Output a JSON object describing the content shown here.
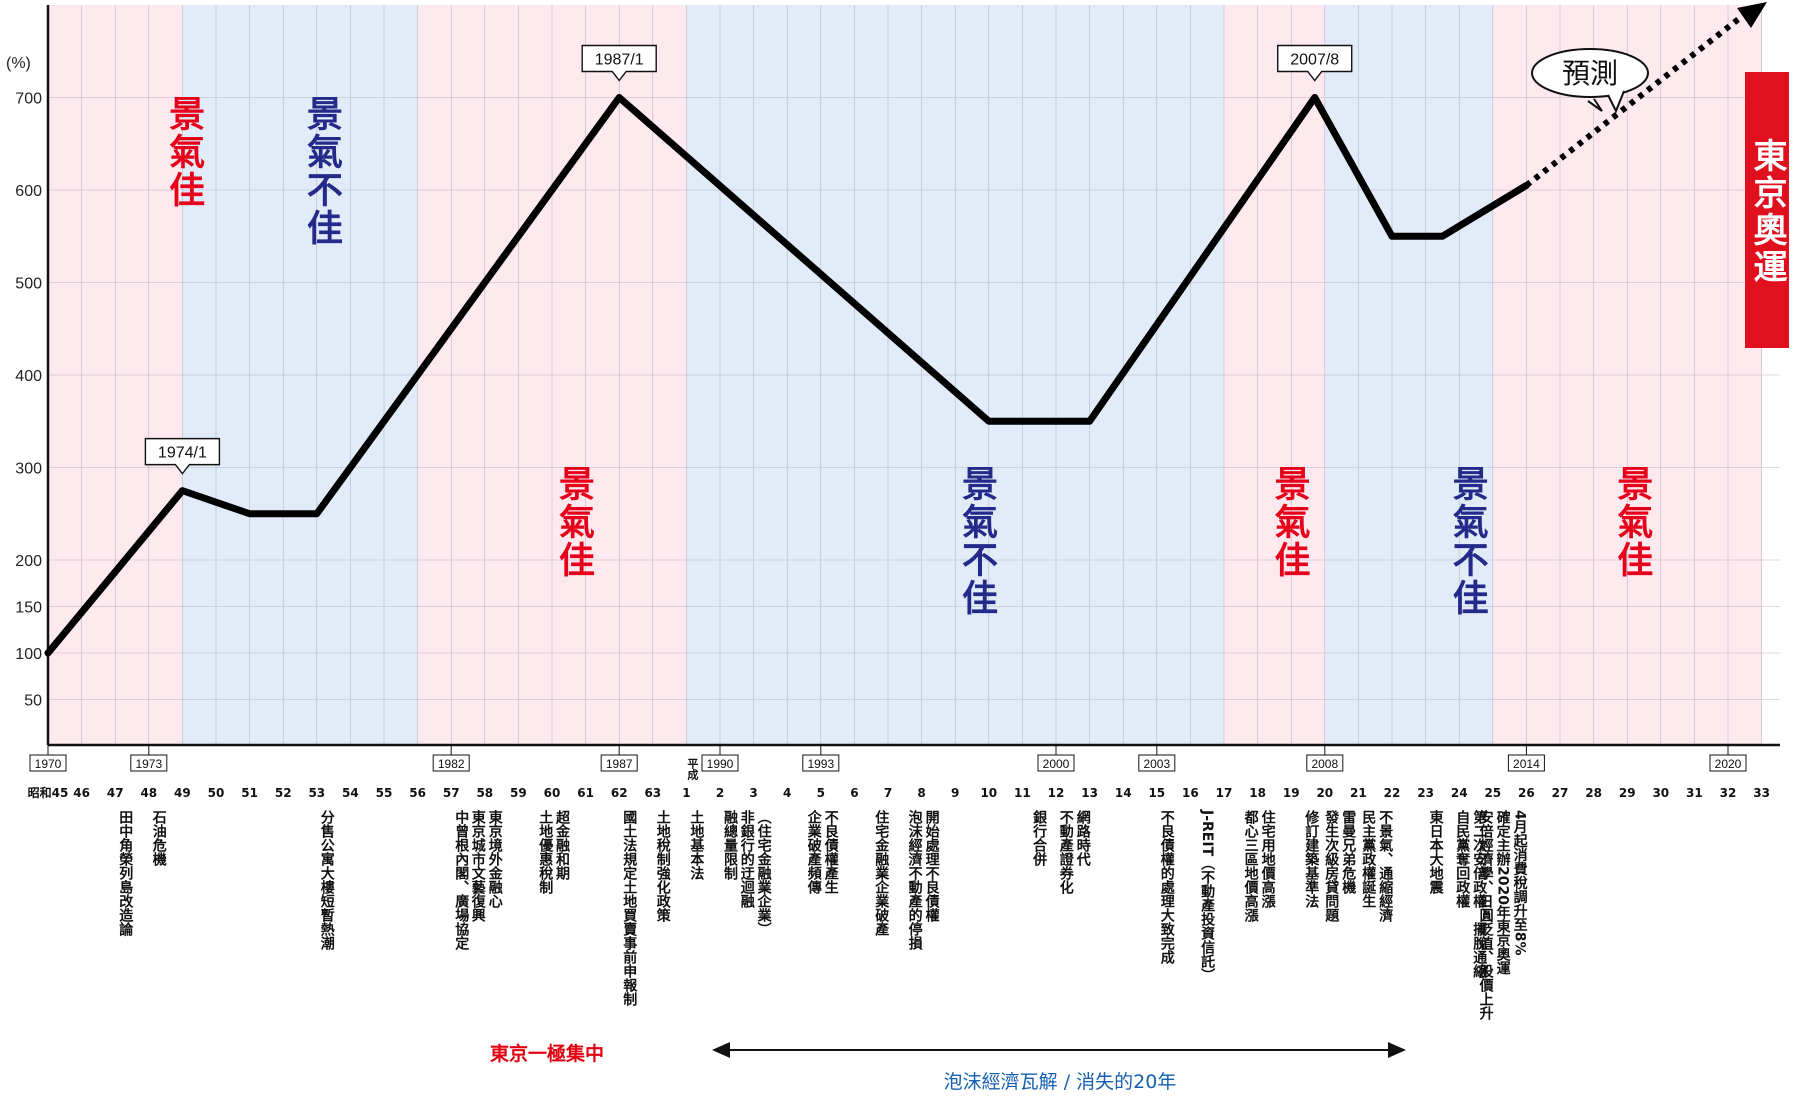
{
  "chart_data": {
    "type": "line",
    "ylabel": "(%)",
    "yticks": [
      50,
      100,
      150,
      200,
      300,
      400,
      500,
      600,
      700
    ],
    "x_domain": [
      1970,
      2020
    ],
    "series": [
      {
        "points": [
          {
            "x": 1970,
            "y": 100
          },
          {
            "x": 1974,
            "y": 275
          },
          {
            "x": 1976,
            "y": 250
          },
          {
            "x": 1978,
            "y": 250
          },
          {
            "x": 1987,
            "y": 700
          },
          {
            "x": 1998,
            "y": 350
          },
          {
            "x": 2001,
            "y": 350
          },
          {
            "x": 2007.7,
            "y": 700
          },
          {
            "x": 2010,
            "y": 550
          },
          {
            "x": 2011.5,
            "y": 550
          },
          {
            "x": 2014,
            "y": 605
          }
        ]
      }
    ],
    "forecast": {
      "from": {
        "x": 2014,
        "y": 605
      },
      "to": {
        "x": 2020,
        "y": 1000
      },
      "label": "預測"
    },
    "callouts": [
      {
        "label": "1974/1",
        "x": 1974,
        "y": 275
      },
      {
        "label": "1987/1",
        "x": 1987,
        "y": 700
      },
      {
        "label": "2007/8",
        "x": 2007.7,
        "y": 700
      }
    ],
    "bands": [
      {
        "from": 1970,
        "to": 1974,
        "color": "#fde9ee",
        "label": "景氣佳",
        "label_color": "#e6001a"
      },
      {
        "from": 1974,
        "to": 1981,
        "color": "#e1ecf8",
        "label": "景氣不佳",
        "label_color": "#242a8a"
      },
      {
        "from": 1981,
        "to": 1989,
        "color": "#fde9ee",
        "label": "景氣佳",
        "label_color": "#e6001a"
      },
      {
        "from": 1989,
        "to": 2005,
        "color": "#e1ecf8",
        "label": "景氣不佳",
        "label_color": "#242a8a"
      },
      {
        "from": 2005,
        "to": 2008,
        "color": "#fde9ee",
        "label": "景氣佳",
        "label_color": "#e6001a"
      },
      {
        "from": 2008,
        "to": 2013,
        "color": "#e1ecf8",
        "label": "景氣不佳",
        "label_color": "#242a8a"
      },
      {
        "from": 2013,
        "to": 2021,
        "color": "#fde9ee",
        "label": "景氣佳",
        "label_color": "#e6001a"
      }
    ],
    "olympic_label": "東京奧運",
    "year_ticks": [
      "1970",
      "1973",
      "1982",
      "1987",
      "1990",
      "1993",
      "2000",
      "2003",
      "2008",
      "2014",
      "2020"
    ],
    "era_labels": [
      "昭和45",
      "46",
      "47",
      "48",
      "49",
      "50",
      "51",
      "52",
      "53",
      "54",
      "55",
      "56",
      "57",
      "58",
      "59",
      "60",
      "61",
      "62",
      "63",
      "1",
      "2",
      "3",
      "4",
      "5",
      "6",
      "7",
      "8",
      "9",
      "10",
      "11",
      "12",
      "13",
      "14",
      "15",
      "16",
      "17",
      "18",
      "19",
      "20",
      "21",
      "22",
      "23",
      "24",
      "25",
      "26",
      "27",
      "28",
      "29",
      "30",
      "31",
      "32",
      "33"
    ],
    "heisei_prefix": "平成",
    "events": [
      {
        "year": 1973,
        "lines": [
          "石油危機"
        ]
      },
      {
        "year": 1972,
        "lines": [
          "田中角榮列島改造論"
        ]
      },
      {
        "year": 1978,
        "lines": [
          "分售公寓大樓短暫熱潮"
        ]
      },
      {
        "year": 1983,
        "lines": [
          "東京境外金融心",
          "東京城市文藝復興"
        ]
      },
      {
        "year": 1982,
        "lines": [
          "中曾根內閣、廣場協定"
        ]
      },
      {
        "year": 1985,
        "lines": [
          "超金融和期"
        ]
      },
      {
        "year": 1984.5,
        "lines": [
          "土地優惠稅制"
        ]
      },
      {
        "year": 1987,
        "lines": [
          "國土法規定土地買賣事前申報制"
        ]
      },
      {
        "year": 1988,
        "lines": [
          "土地稅制強化政策"
        ]
      },
      {
        "year": 1989,
        "lines": [
          "土地基本法"
        ]
      },
      {
        "year": 1991,
        "lines": [
          "（住宅金融業企業）"
        ]
      },
      {
        "year": 1990.5,
        "lines": [
          "非銀行的迂迴融"
        ]
      },
      {
        "year": 1990,
        "lines": [
          "融總量限制"
        ]
      },
      {
        "year": 1993,
        "lines": [
          "不良債權產生",
          "企業破產頻傳"
        ]
      },
      {
        "year": 1994.5,
        "lines": [
          "住宅金融業企業破產"
        ]
      },
      {
        "year": 1996,
        "lines": [
          "開始處理不良債權",
          "泡沫經濟不動產的停損"
        ]
      },
      {
        "year": 1999.2,
        "lines": [
          "銀行合併"
        ]
      },
      {
        "year": 2000.5,
        "lines": [
          "網路時代",
          "不動產證券化"
        ]
      },
      {
        "year": 2003,
        "lines": [
          "不良債權的處理大致完成"
        ]
      },
      {
        "year": 2004.2,
        "lines": [
          "J-REIT（不動產投資信託）"
        ]
      },
      {
        "year": 2006,
        "lines": [
          "住宅用地價高漲",
          "都心三區地價高漲"
        ]
      },
      {
        "year": 2007.3,
        "lines": [
          "修訂建築基準法"
        ]
      },
      {
        "year": 2008.4,
        "lines": [
          "雷曼兄弟危機",
          "發生次級房貸問題"
        ]
      },
      {
        "year": 2009.5,
        "lines": [
          "不景氣、通縮經濟",
          "民主黨政權誕生"
        ]
      },
      {
        "year": 2011,
        "lines": [
          "東日本大地震"
        ]
      },
      {
        "year": 2012.3,
        "lines": [
          "第二次安倍政權、擺脫通縮",
          "自民黨奪回政權"
        ]
      },
      {
        "year": 2013.5,
        "lines": [
          "4月起消費稅調升至8%",
          "確定主辦2020年東京奧運",
          "安倍經濟學、日圓貶值、股價上升"
        ]
      }
    ],
    "footer_left": "東京一極集中",
    "footer_right": "泡沫經濟瓦解 / 消失的20年"
  }
}
